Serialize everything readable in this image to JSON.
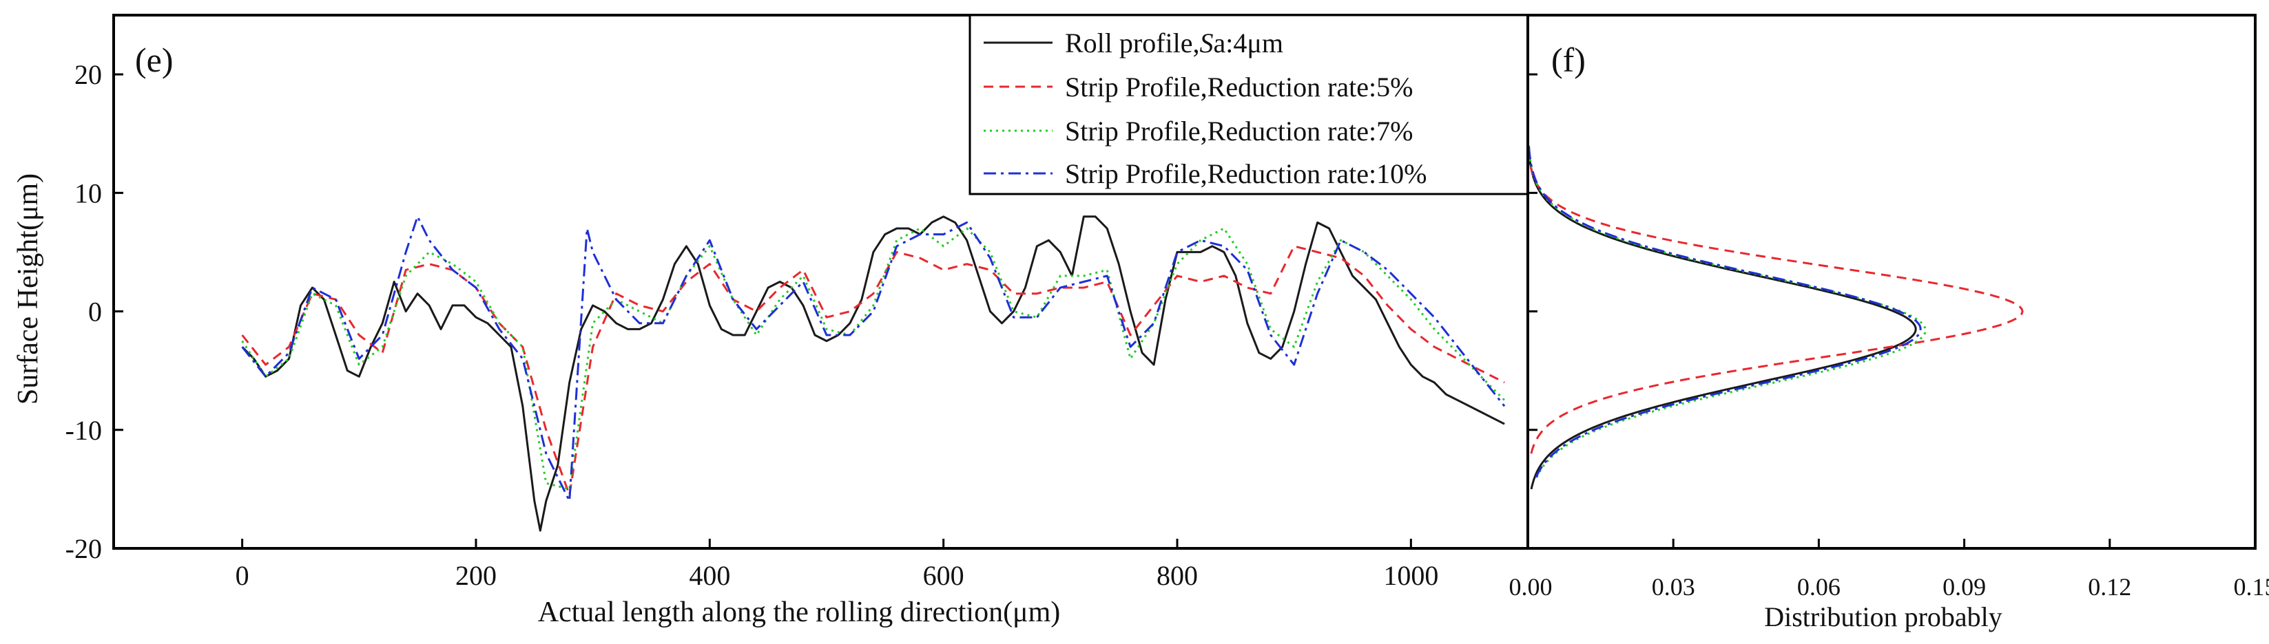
{
  "colors": {
    "roll": "#1a1a1a",
    "strip5": "#e8282e",
    "strip7": "#22cc22",
    "strip10": "#1f2fd6",
    "axis": "#000000",
    "background": "#ffffff"
  },
  "chart_data": [
    {
      "id": "e",
      "type": "line",
      "panel_label": "(e)",
      "xlabel": "Actual length along the rolling direction(μm)",
      "ylabel": "Surface Height(μm)",
      "xlim": [
        -110,
        1100
      ],
      "ylim": [
        -20,
        25
      ],
      "xticks": [
        0,
        200,
        400,
        600,
        800,
        1000
      ],
      "yticks": [
        -20,
        -10,
        0,
        10,
        20
      ],
      "legend_position": "top-right",
      "series": [
        {
          "name": "Roll profile,Sa:4μm",
          "legend_prefix": "Roll profile,",
          "legend_italic": "S",
          "legend_suffix": "a:4μm",
          "style": "solid",
          "color_key": "roll",
          "x": [
            0,
            10,
            20,
            30,
            40,
            50,
            60,
            70,
            80,
            90,
            100,
            110,
            120,
            130,
            140,
            150,
            160,
            170,
            180,
            190,
            200,
            210,
            220,
            230,
            240,
            250,
            255,
            260,
            270,
            280,
            290,
            300,
            310,
            320,
            330,
            340,
            350,
            360,
            370,
            380,
            390,
            400,
            410,
            420,
            430,
            440,
            450,
            460,
            470,
            480,
            490,
            500,
            510,
            520,
            530,
            540,
            550,
            560,
            570,
            580,
            590,
            600,
            610,
            620,
            630,
            640,
            650,
            660,
            670,
            680,
            690,
            700,
            710,
            720,
            730,
            740,
            750,
            760,
            770,
            780,
            790,
            800,
            810,
            820,
            830,
            840,
            850,
            860,
            870,
            880,
            890,
            900,
            910,
            920,
            930,
            940,
            950,
            960,
            970,
            980,
            990,
            1000,
            1010,
            1020,
            1030,
            1040,
            1060,
            1080
          ],
          "y": [
            -3,
            -4,
            -5.5,
            -5,
            -4,
            0.5,
            2,
            1,
            -2,
            -5,
            -5.5,
            -3,
            -1,
            2.5,
            0,
            1.5,
            0.5,
            -1.5,
            0.5,
            0.5,
            -0.5,
            -1,
            -2,
            -3,
            -8,
            -16,
            -18.5,
            -16,
            -13,
            -6,
            -1.5,
            0.5,
            0,
            -1,
            -1.5,
            -1.5,
            -1,
            1,
            4,
            5.5,
            4,
            0.5,
            -1.5,
            -2,
            -2,
            0,
            2,
            2.5,
            2,
            0.5,
            -2,
            -2.5,
            -2,
            -1,
            1,
            5,
            6.5,
            7,
            7,
            6.5,
            7.5,
            8,
            7.5,
            6,
            3,
            0,
            -1,
            0,
            2,
            5.5,
            6,
            5,
            3,
            8,
            8,
            7,
            4,
            0,
            -3.5,
            -4.5,
            1,
            5,
            5,
            5,
            5.5,
            5,
            3,
            -1,
            -3.5,
            -4,
            -3,
            0,
            4,
            7.5,
            7,
            5,
            3,
            2,
            1,
            -1,
            -3,
            -4.5,
            -5.5,
            -6,
            -7,
            -7.5,
            -8.5,
            -9.5
          ]
        },
        {
          "name": "Strip Profile,Reduction rate:5%",
          "style": "dashed",
          "color_key": "strip5",
          "x": [
            0,
            20,
            40,
            60,
            80,
            100,
            120,
            140,
            160,
            180,
            200,
            220,
            240,
            260,
            280,
            300,
            320,
            340,
            360,
            380,
            400,
            420,
            440,
            460,
            480,
            500,
            520,
            540,
            560,
            580,
            600,
            620,
            640,
            660,
            680,
            700,
            720,
            740,
            760,
            780,
            800,
            820,
            840,
            860,
            880,
            900,
            920,
            940,
            960,
            980,
            1000,
            1020,
            1040,
            1060,
            1080
          ],
          "y": [
            -2,
            -4.5,
            -3,
            1.5,
            1,
            -2,
            -3.5,
            3.5,
            4,
            3.5,
            2,
            -1,
            -3,
            -10,
            -15.5,
            -3,
            1.5,
            0.5,
            0,
            2.5,
            4,
            1,
            0,
            2,
            3.5,
            -0.5,
            0,
            1.5,
            5,
            4.5,
            3.5,
            4,
            3.5,
            1.5,
            1.5,
            2,
            2,
            2.5,
            -2,
            0.5,
            3,
            2.5,
            3,
            2,
            1.5,
            5.5,
            5,
            4.5,
            3,
            0.5,
            -1.5,
            -3,
            -4,
            -5,
            -6
          ]
        },
        {
          "name": "Strip Profile,Reduction rate:7%",
          "style": "dotted",
          "color_key": "strip7",
          "x": [
            0,
            20,
            40,
            60,
            80,
            100,
            120,
            140,
            160,
            180,
            200,
            220,
            240,
            260,
            280,
            300,
            320,
            340,
            360,
            380,
            400,
            420,
            440,
            460,
            480,
            500,
            520,
            540,
            560,
            580,
            600,
            620,
            640,
            660,
            680,
            700,
            720,
            740,
            760,
            780,
            800,
            820,
            840,
            860,
            880,
            900,
            920,
            940,
            960,
            980,
            1000,
            1020,
            1040,
            1060,
            1080
          ],
          "y": [
            -2.5,
            -5.5,
            -4,
            1.5,
            0.5,
            -4.5,
            -3,
            3,
            5,
            4,
            2.5,
            -1,
            -3,
            -14.5,
            -15,
            -1,
            1,
            0,
            -1,
            3,
            5.5,
            1,
            -2,
            1,
            3,
            -1.5,
            -2,
            0.5,
            6,
            7,
            5.5,
            7,
            5,
            0,
            -0.5,
            3,
            3,
            3.5,
            -4,
            -1,
            4,
            6,
            7,
            4,
            -1.5,
            -3,
            2.5,
            6,
            5,
            3,
            1,
            -1.5,
            -3.5,
            -5.5,
            -7.5
          ]
        },
        {
          "name": "Strip Profile,Reduction rate:10%",
          "style": "dashdot",
          "color_key": "strip10",
          "x": [
            0,
            20,
            40,
            60,
            80,
            100,
            120,
            140,
            150,
            160,
            180,
            200,
            220,
            240,
            260,
            280,
            295,
            300,
            320,
            340,
            360,
            380,
            400,
            420,
            440,
            460,
            480,
            500,
            520,
            540,
            560,
            580,
            600,
            620,
            640,
            660,
            680,
            700,
            720,
            740,
            760,
            780,
            800,
            820,
            840,
            860,
            880,
            900,
            920,
            940,
            960,
            980,
            1000,
            1020,
            1040,
            1060,
            1080
          ],
          "y": [
            -3,
            -5.5,
            -3.5,
            2,
            1,
            -4,
            -2,
            5,
            8,
            6,
            3.5,
            2,
            -1.5,
            -4,
            -12,
            -16,
            7,
            5,
            1,
            -1,
            -1,
            3,
            6,
            1,
            -1.5,
            0.5,
            2.5,
            -2,
            -2,
            0,
            5.5,
            6.5,
            6.5,
            7.5,
            4.5,
            -0.5,
            -0.5,
            2,
            2.5,
            3,
            -3,
            -1,
            5,
            6,
            5.5,
            3.5,
            -2,
            -4.5,
            1.5,
            6,
            5,
            3.5,
            1.5,
            -0.5,
            -3,
            -5.5,
            -8
          ]
        }
      ]
    },
    {
      "id": "f",
      "type": "line",
      "panel_label": "(f)",
      "xlabel": "Distribution probably",
      "ylabel": "",
      "xlim": [
        0,
        0.15
      ],
      "ylim": [
        -20,
        25
      ],
      "xticks": [
        0.0,
        0.03,
        0.06,
        0.09,
        0.12,
        0.15
      ],
      "xtick_labels": [
        "0.00",
        "0.03",
        "0.06",
        "0.09",
        "0.12",
        "0.15"
      ],
      "yticks": [
        -20,
        -10,
        0,
        10,
        20
      ],
      "series": [
        {
          "name": "Roll profile",
          "distribution": "normal",
          "peak": 0.08,
          "mean": -1.5,
          "sigma": 4.4,
          "y_range": [
            -15,
            14
          ],
          "color_key": "roll",
          "style": "solid"
        },
        {
          "name": "Reduction rate:5%",
          "distribution": "normal",
          "peak": 0.102,
          "mean": 0.0,
          "sigma": 3.8,
          "y_range": [
            -12,
            13
          ],
          "color_key": "strip5",
          "style": "dashed"
        },
        {
          "name": "Reduction rate:7%",
          "distribution": "normal",
          "peak": 0.082,
          "mean": -1.6,
          "sigma": 4.5,
          "y_range": [
            -14,
            14
          ],
          "color_key": "strip7",
          "style": "dotted"
        },
        {
          "name": "Reduction rate:10%",
          "distribution": "normal",
          "peak": 0.081,
          "mean": -1.5,
          "sigma": 4.5,
          "y_range": [
            -14,
            14
          ],
          "color_key": "strip10",
          "style": "dashdot"
        }
      ]
    }
  ]
}
